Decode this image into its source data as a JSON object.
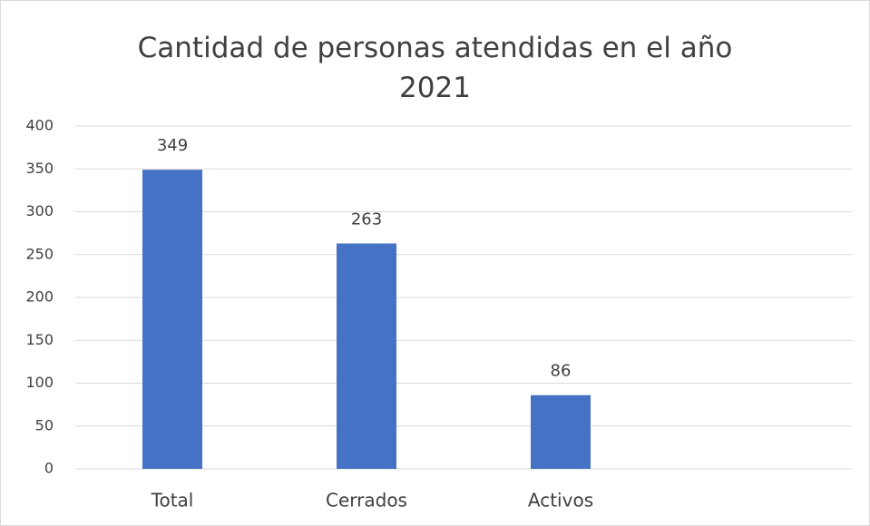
{
  "chart_data": {
    "type": "bar",
    "title": "Cantidad de personas atendidas en el año 2021",
    "categories": [
      "Total",
      "Cerrados",
      "Activos",
      null
    ],
    "values": [
      349,
      263,
      86,
      null
    ],
    "color": "#4472c4",
    "ylim": [
      0,
      400
    ],
    "yticks": [
      0,
      50,
      100,
      150,
      200,
      250,
      300,
      350,
      400
    ],
    "grid": true
  }
}
